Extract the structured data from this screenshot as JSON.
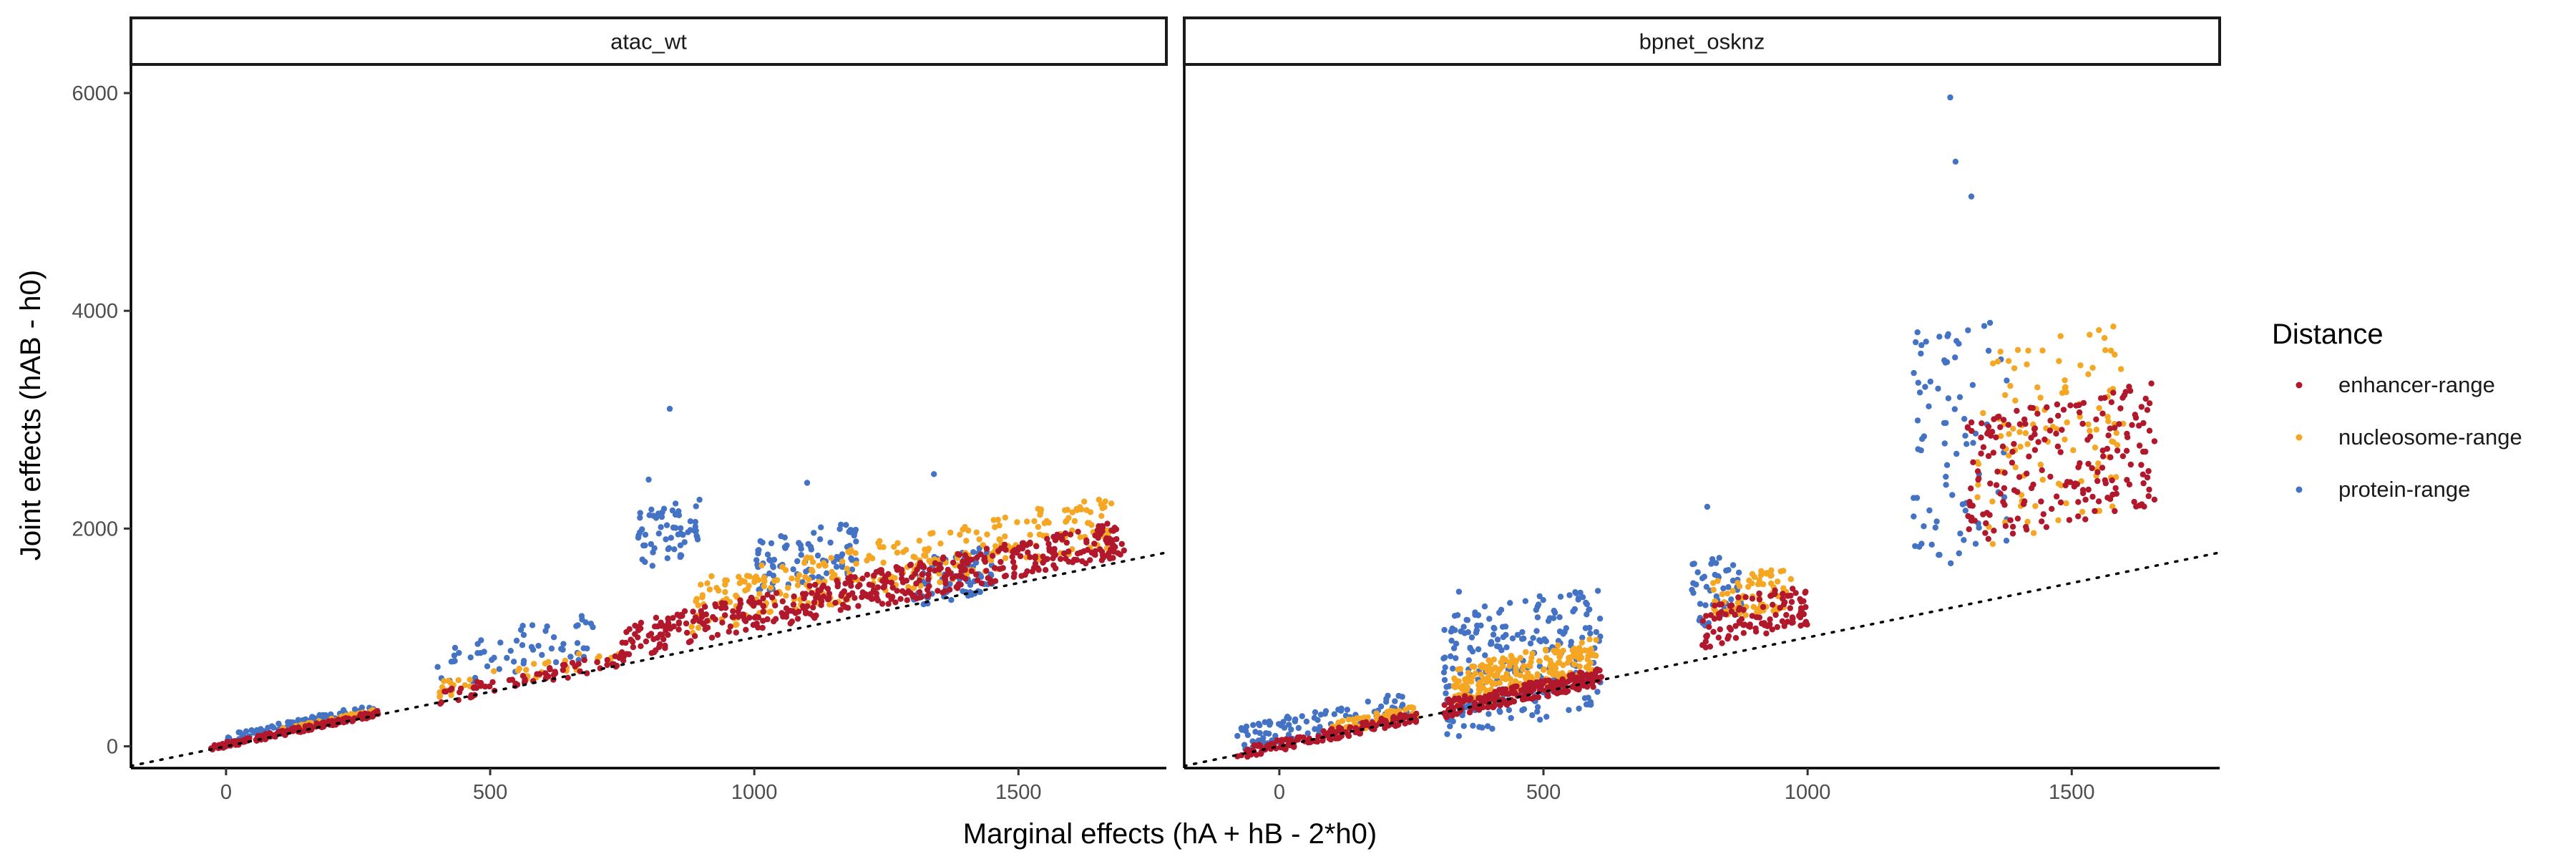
{
  "chart_data": {
    "type": "scatter",
    "xlabel": "Marginal effects (hA + hB - 2*h0)",
    "ylabel": "Joint effects (hAB - h0)",
    "xlim": [
      -180,
      1780
    ],
    "ylim": [
      -200,
      6250
    ],
    "x_ticks": [
      0,
      500,
      1000,
      1500
    ],
    "y_ticks": [
      0,
      2000,
      4000,
      6000
    ],
    "grid": false,
    "reference_line": {
      "style": "dotted",
      "slope": 1,
      "intercept": 0
    },
    "legend": {
      "title": "Distance",
      "placement": "right",
      "entries": [
        {
          "name": "enhancer-range",
          "color": "#B2182B"
        },
        {
          "name": "nucleosome-range",
          "color": "#F5A623"
        },
        {
          "name": "protein-range",
          "color": "#4472C4"
        }
      ]
    },
    "panels": [
      {
        "title": "atac_wt",
        "clusters": [
          {
            "series": "protein-range",
            "x": [
              0,
              280
            ],
            "y_offset": [
              20,
              110
            ],
            "n": 90
          },
          {
            "series": "nucleosome-range",
            "x": [
              100,
              290
            ],
            "y_offset": [
              10,
              60
            ],
            "n": 60
          },
          {
            "series": "enhancer-range",
            "x": [
              -30,
              290
            ],
            "y_offset": [
              -10,
              40
            ],
            "n": 160
          },
          {
            "series": "protein-range",
            "x": [
              400,
              700
            ],
            "y_offset": [
              120,
              560
            ],
            "n": 60
          },
          {
            "series": "nucleosome-range",
            "x": [
              400,
              760
            ],
            "y_offset": [
              40,
              200
            ],
            "n": 40
          },
          {
            "series": "enhancer-range",
            "x": [
              400,
              760
            ],
            "y_offset": [
              -20,
              120
            ],
            "n": 70
          },
          {
            "series": "protein-range",
            "x": [
              780,
              900
            ],
            "y_offset": [
              850,
              1400
            ],
            "n": 60
          },
          {
            "series": "protein-range",
            "x": [
              1000,
              1200
            ],
            "y_offset": [
              400,
              900
            ],
            "n": 90
          },
          {
            "series": "protein-range",
            "x": [
              1300,
              1450
            ],
            "y_offset": [
              -30,
              400
            ],
            "n": 80
          },
          {
            "series": "nucleosome-range",
            "x": [
              880,
              1680
            ],
            "y_offset": [
              150,
              650
            ],
            "n": 300
          },
          {
            "series": "enhancer-range",
            "x": [
              750,
              1700
            ],
            "y_offset": [
              50,
              380
            ],
            "n": 480
          }
        ],
        "outliers": [
          {
            "series": "protein-range",
            "x": 840,
            "y": 3100
          },
          {
            "series": "protein-range",
            "x": 1100,
            "y": 2420
          },
          {
            "series": "protein-range",
            "x": 1340,
            "y": 2500
          },
          {
            "series": "protein-range",
            "x": 800,
            "y": 2450
          }
        ]
      },
      {
        "title": "bpnet_osknz",
        "clusters": [
          {
            "series": "protein-range",
            "x": [
              -80,
              250
            ],
            "y_offset": [
              10,
              260
            ],
            "n": 110
          },
          {
            "series": "nucleosome-range",
            "x": [
              100,
              260
            ],
            "y_offset": [
              0,
              120
            ],
            "n": 60
          },
          {
            "series": "enhancer-range",
            "x": [
              -80,
              260
            ],
            "y_offset": [
              -40,
              60
            ],
            "n": 150
          },
          {
            "series": "protein-range",
            "x": [
              310,
              610
            ],
            "y_offset": [
              -250,
              900
            ],
            "n": 240
          },
          {
            "series": "nucleosome-range",
            "x": [
              330,
              600
            ],
            "y_offset": [
              50,
              400
            ],
            "n": 220
          },
          {
            "series": "enhancer-range",
            "x": [
              310,
              610
            ],
            "y_offset": [
              -50,
              110
            ],
            "n": 220
          },
          {
            "series": "protein-range",
            "x": [
              780,
              880
            ],
            "y_offset": [
              300,
              900
            ],
            "n": 50
          },
          {
            "series": "nucleosome-range",
            "x": [
              820,
              970
            ],
            "y_offset": [
              300,
              700
            ],
            "n": 70
          },
          {
            "series": "enhancer-range",
            "x": [
              800,
              1000
            ],
            "y_offset": [
              100,
              500
            ],
            "n": 110
          },
          {
            "series": "protein-range",
            "x": [
              1200,
              1380
            ],
            "y_offset": [
              400,
              2600
            ],
            "n": 80
          },
          {
            "series": "nucleosome-range",
            "x": [
              1320,
              1600
            ],
            "y_offset": [
              500,
              2300
            ],
            "n": 110
          },
          {
            "series": "enhancer-range",
            "x": [
              1300,
              1660
            ],
            "y_offset": [
              550,
              1700
            ],
            "n": 200
          }
        ],
        "outliers": [
          {
            "series": "protein-range",
            "x": 1270,
            "y": 5960
          },
          {
            "series": "protein-range",
            "x": 1280,
            "y": 5370
          },
          {
            "series": "protein-range",
            "x": 1310,
            "y": 5050
          },
          {
            "series": "protein-range",
            "x": 810,
            "y": 2200
          },
          {
            "series": "protein-range",
            "x": 340,
            "y": 1420
          },
          {
            "series": "protein-range",
            "x": 600,
            "y": 1050
          }
        ]
      }
    ]
  }
}
